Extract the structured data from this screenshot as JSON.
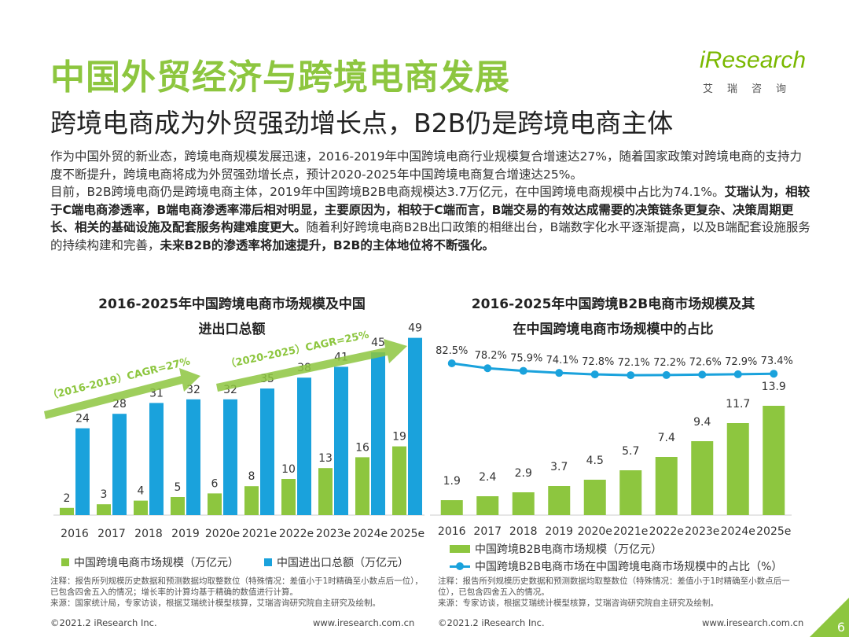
{
  "header": {
    "title": "中国外贸经济与跨境电商发展",
    "subtitle": "跨境电商成为外贸强劲增长点，B2B仍是跨境电商主体",
    "logo_text": "iResearch",
    "logo_cn": "艾瑞咨询"
  },
  "body": {
    "p1": "作为中国外贸的新业态，跨境电商规模发展迅速，2016-2019年中国跨境电商行业规模复合增速达27%，随着国家政策对跨境电商的支持力度不断提升，跨境电商将成为外贸强劲增长点，预计2020-2025年中国跨境电商复合增速达25%。",
    "p2a": "目前，B2B跨境电商仍是跨境电商主体，2019年中国跨境B2B电商规模达3.7万亿元，在中国跨境电商规模中占比为74.1%。",
    "p2b": "艾瑞认为，相较于C端电商渗透率，B端电商渗透率滞后相对明显，主要原因为，相较于C端而言，B端交易的有效达成需要的决策链条更复杂、决策周期更长、相关的基础设施及配套服务构建难度更大。",
    "p2c": "随着利好跨境电商B2B出口政策的相继出台，B端数字化水平逐渐提高，以及B端配套设施服务的持续构建和完善，",
    "p2d": "未来B2B的渗透率将加速提升，B2B的主体地位将不断强化。"
  },
  "chart_data": [
    {
      "type": "bar",
      "title_line1": "2016-2025年中国跨境电商市场规模及中国",
      "title_line2": "进出口总额",
      "categories": [
        "2016",
        "2017",
        "2018",
        "2019",
        "2020e",
        "2021e",
        "2022e",
        "2023e",
        "2024e",
        "2025e"
      ],
      "series": [
        {
          "name": "中国跨境电商市场规模（万亿元）",
          "color": "#8dc63f",
          "values": [
            2,
            3,
            4,
            5,
            6,
            8,
            10,
            13,
            16,
            19
          ]
        },
        {
          "name": "中国进出口总额（万亿元）",
          "color": "#1aa2dc",
          "values": [
            24,
            28,
            31,
            32,
            32,
            35,
            38,
            41,
            45,
            49
          ]
        }
      ],
      "annotations": [
        "（2016-2019）CAGR=27%",
        "（2020-2025）CAGR=25%"
      ],
      "annotation_color": "#8dc63f",
      "ylim": [
        0,
        50
      ]
    },
    {
      "type": "bar+line",
      "title_line1": "2016-2025年中国跨境B2B电商市场规模及其",
      "title_line2": "在中国跨境电商市场规模中的占比",
      "categories": [
        "2016",
        "2017",
        "2018",
        "2019",
        "2020e",
        "2021e",
        "2022e",
        "2023e",
        "2024e",
        "2025e"
      ],
      "series": [
        {
          "name": "中国跨境B2B电商市场规模（万亿元）",
          "type": "bar",
          "color": "#8dc63f",
          "values": [
            1.9,
            2.4,
            2.9,
            3.7,
            4.5,
            5.7,
            7.4,
            9.4,
            11.7,
            13.9
          ]
        },
        {
          "name": "中国跨境B2B电商市场在中国跨境电商市场规模中的占比（%）",
          "type": "line",
          "color": "#1aa2dc",
          "values": [
            82.5,
            78.2,
            75.9,
            74.1,
            72.8,
            72.1,
            72.2,
            72.6,
            72.9,
            73.4
          ]
        }
      ],
      "value_labels_bar": [
        "1.9",
        "2.4",
        "2.9",
        "3.7",
        "4.5",
        "5.7",
        "7.4",
        "9.4",
        "11.7",
        "13.9"
      ],
      "value_labels_line": [
        "82.5%",
        "78.2%",
        "75.9%",
        "74.1%",
        "72.8%",
        "72.1%",
        "72.2%",
        "72.6%",
        "72.9%",
        "73.4%"
      ]
    }
  ],
  "notes": {
    "left": "注释：报告所列规模历史数据和预测数据均取整数位（特殊情况：差值小于1时精确至小数点后一位），已包含四舍五入的情况；增长率的计算均基于精确的数值进行计算。",
    "left_source": "来源：国家统计局，专家访谈，根据艾瑞统计模型核算，艾瑞咨询研究院自主研究及绘制。",
    "right": "注释：报告所列规模历史数据和预测数据均取整数位（特殊情况：差值小于1时精确至小数点后一位），已包含四舍五入的情况。",
    "right_source": "来源：专家访谈，根据艾瑞统计模型核算，艾瑞咨询研究院自主研究及绘制。"
  },
  "footer": {
    "left_copyright": "©2021.2 iResearch Inc.",
    "left_url": "www.iresearch.com.cn",
    "right_copyright": "©2021.2 iResearch Inc.",
    "right_url": "www.iresearch.com.cn",
    "page_number": "6"
  },
  "colors": {
    "accent_green": "#8dc63f",
    "accent_blue": "#1aa2dc"
  }
}
